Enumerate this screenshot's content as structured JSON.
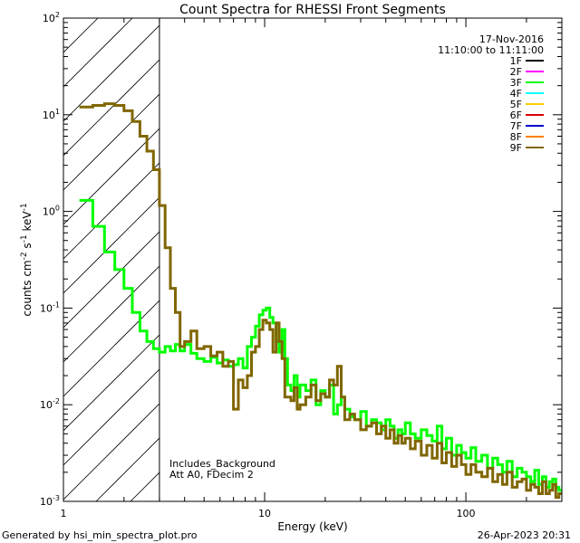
{
  "chart_data": {
    "type": "line",
    "title": "Count Spectra for RHESSI Front Segments",
    "xlabel": "Energy (keV)",
    "ylabel_parts": [
      "counts cm",
      "-2",
      " s",
      "-1",
      " keV",
      "-1"
    ],
    "xscale": "log",
    "yscale": "log",
    "xlim": [
      1,
      300
    ],
    "ylim": [
      0.001,
      100
    ],
    "x_ticks": [
      {
        "value": 1,
        "label": "1"
      },
      {
        "value": 10,
        "label": "10"
      },
      {
        "value": 100,
        "label": "100"
      }
    ],
    "y_ticks": [
      {
        "value": 0.001,
        "base": "10",
        "exp": "-3"
      },
      {
        "value": 0.01,
        "base": "10",
        "exp": "-2"
      },
      {
        "value": 0.1,
        "base": "10",
        "exp": "-1"
      },
      {
        "value": 1,
        "base": "10",
        "exp": "0"
      },
      {
        "value": 10,
        "base": "10",
        "exp": "1"
      },
      {
        "value": 100,
        "base": "10",
        "exp": "2"
      }
    ],
    "excluded_region": {
      "x_from": 1,
      "x_to": 3,
      "pattern": "diagonal-hatch"
    },
    "legend_header": [
      "17-Nov-2016",
      "11:10:00 to 11:11:00"
    ],
    "legend_position": "top-right",
    "legend": [
      {
        "name": "1F",
        "color": "#000000"
      },
      {
        "name": "2F",
        "color": "#ff00ff"
      },
      {
        "name": "3F",
        "color": "#00ff00"
      },
      {
        "name": "4F",
        "color": "#00ffff"
      },
      {
        "name": "5F",
        "color": "#ffcc00"
      },
      {
        "name": "6F",
        "color": "#e00000"
      },
      {
        "name": "7F",
        "color": "#0000cc"
      },
      {
        "name": "8F",
        "color": "#ff8000"
      },
      {
        "name": "9F",
        "color": "#806600"
      }
    ],
    "annotations": [
      "Includes_Background",
      "Att A0, FDecim 2"
    ],
    "series": [
      {
        "name": "3F",
        "color": "#00ff00",
        "step": true,
        "x": [
          1.2,
          1.4,
          1.6,
          1.8,
          2.0,
          2.2,
          2.4,
          2.6,
          2.8,
          3.0,
          3.2,
          3.4,
          3.6,
          3.8,
          4.0,
          4.3,
          4.6,
          5.0,
          5.4,
          5.8,
          6.2,
          6.6,
          7.0,
          7.4,
          7.8,
          8.2,
          8.6,
          9.0,
          9.4,
          9.8,
          10.2,
          10.6,
          11.0,
          11.4,
          11.8,
          12.2,
          12.6,
          13.0,
          13.5,
          14.0,
          14.5,
          15.0,
          16.0,
          17.0,
          18.0,
          19.0,
          20.0,
          21.0,
          22.0,
          23.0,
          24.0,
          25.0,
          26.5,
          28.0,
          30.0,
          32.0,
          34.0,
          36.0,
          38.0,
          40.0,
          42.0,
          44.0,
          46.0,
          48.0,
          50.0,
          53.0,
          56.0,
          60.0,
          64.0,
          68.0,
          72.0,
          76.0,
          80.0,
          85.0,
          90.0,
          95.0,
          100,
          106,
          112,
          120,
          128,
          136,
          144,
          152,
          160,
          170,
          180,
          190,
          200,
          210,
          220,
          230,
          240,
          250,
          260,
          270,
          280,
          290,
          300
        ],
        "y": [
          1.3,
          0.7,
          0.38,
          0.25,
          0.16,
          0.09,
          0.058,
          0.045,
          0.038,
          0.035,
          0.04,
          0.036,
          0.042,
          0.036,
          0.042,
          0.034,
          0.03,
          0.028,
          0.031,
          0.027,
          0.029,
          0.025,
          0.026,
          0.03,
          0.024,
          0.04,
          0.05,
          0.065,
          0.085,
          0.095,
          0.1,
          0.08,
          0.07,
          0.045,
          0.035,
          0.06,
          0.03,
          0.016,
          0.014,
          0.02,
          0.012,
          0.016,
          0.014,
          0.018,
          0.01,
          0.014,
          0.012,
          0.016,
          0.008,
          0.01,
          0.012,
          0.009,
          0.0075,
          0.007,
          0.0085,
          0.006,
          0.007,
          0.0065,
          0.0055,
          0.007,
          0.006,
          0.0045,
          0.0055,
          0.005,
          0.0065,
          0.005,
          0.0045,
          0.0055,
          0.0048,
          0.0042,
          0.006,
          0.0035,
          0.0045,
          0.003,
          0.0038,
          0.0032,
          0.0028,
          0.0036,
          0.0026,
          0.003,
          0.0022,
          0.0028,
          0.0024,
          0.002,
          0.0026,
          0.0018,
          0.0022,
          0.002,
          0.0018,
          0.0016,
          0.0021,
          0.0015,
          0.0018,
          0.0014,
          0.0016,
          0.0017,
          0.0014,
          0.0013,
          0.0015
        ]
      },
      {
        "name": "9F",
        "color": "#806600",
        "step": true,
        "x": [
          1.2,
          1.4,
          1.6,
          1.8,
          2.0,
          2.2,
          2.4,
          2.6,
          2.8,
          3.0,
          3.2,
          3.4,
          3.6,
          3.8,
          4.0,
          4.3,
          4.6,
          5.0,
          5.4,
          5.8,
          6.2,
          6.6,
          7.0,
          7.4,
          7.8,
          8.2,
          8.6,
          9.0,
          9.4,
          9.8,
          10.2,
          10.6,
          11.0,
          11.4,
          11.8,
          12.2,
          12.6,
          13.0,
          13.5,
          14.0,
          14.5,
          15.0,
          16.0,
          17.0,
          18.0,
          19.0,
          20.0,
          21.0,
          22.0,
          23.0,
          24.0,
          25.0,
          26.5,
          28.0,
          30.0,
          32.0,
          34.0,
          36.0,
          38.0,
          40.0,
          42.0,
          44.0,
          46.0,
          48.0,
          50.0,
          53.0,
          56.0,
          60.0,
          64.0,
          68.0,
          72.0,
          76.0,
          80.0,
          85.0,
          90.0,
          95.0,
          100,
          106,
          112,
          120,
          128,
          136,
          144,
          152,
          160,
          170,
          180,
          190,
          200,
          210,
          220,
          230,
          240,
          250,
          260,
          270,
          280,
          290,
          300
        ],
        "y": [
          12,
          12.5,
          13,
          12.5,
          11,
          8.5,
          6.0,
          4.2,
          2.7,
          1.15,
          0.42,
          0.16,
          0.09,
          0.04,
          0.045,
          0.058,
          0.038,
          0.04,
          0.032,
          0.035,
          0.025,
          0.028,
          0.009,
          0.018,
          0.015,
          0.02,
          0.035,
          0.04,
          0.06,
          0.075,
          0.07,
          0.06,
          0.035,
          0.07,
          0.045,
          0.03,
          0.012,
          0.012,
          0.011,
          0.015,
          0.009,
          0.01,
          0.012,
          0.016,
          0.011,
          0.013,
          0.012,
          0.018,
          0.016,
          0.025,
          0.012,
          0.007,
          0.008,
          0.007,
          0.0055,
          0.006,
          0.0065,
          0.005,
          0.006,
          0.0045,
          0.0055,
          0.004,
          0.0048,
          0.004,
          0.0045,
          0.0035,
          0.0042,
          0.003,
          0.0038,
          0.0028,
          0.004,
          0.0025,
          0.0032,
          0.0023,
          0.003,
          0.0024,
          0.0019,
          0.0024,
          0.002,
          0.0018,
          0.0022,
          0.0016,
          0.0019,
          0.0015,
          0.002,
          0.0014,
          0.0016,
          0.0017,
          0.0013,
          0.0015,
          0.0014,
          0.0012,
          0.0016,
          0.0012,
          0.0013,
          0.0015,
          0.0011,
          0.0012,
          0.0013
        ]
      }
    ]
  },
  "footer": {
    "generated_by": "Generated by hsi_min_spectra_plot.pro",
    "date": "26-Apr-2023 20:31"
  }
}
